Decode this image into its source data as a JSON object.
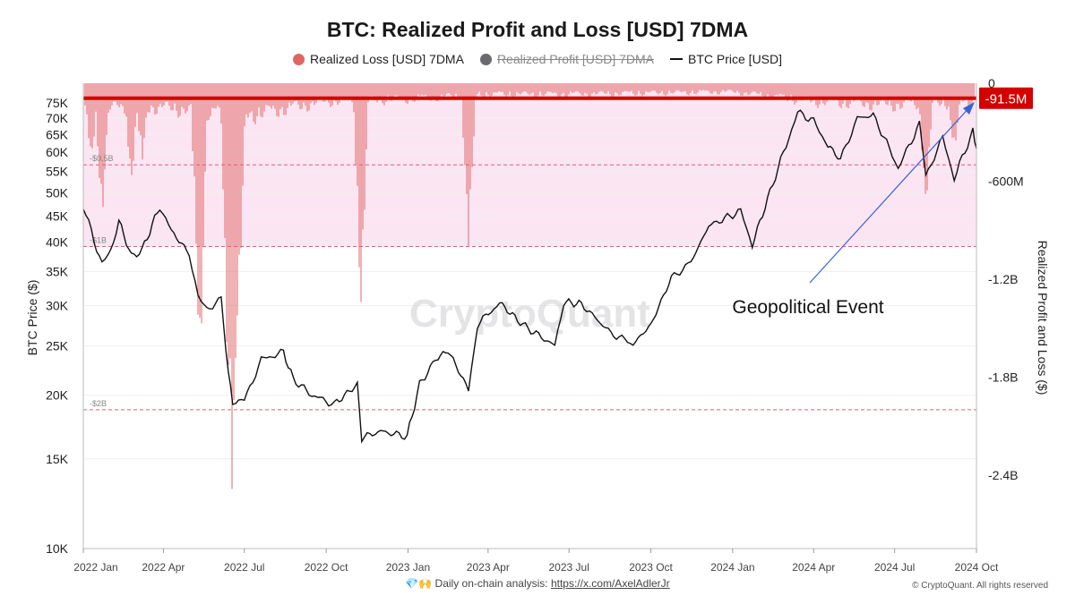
{
  "chart_data": {
    "type": "bar",
    "title": "BTC: Realized Profit and Loss [USD] 7DMA",
    "left_axis_label": "BTC Price ($)",
    "right_axis_label": "Realized Profit and Loss ($)",
    "left_axis_scale": "log",
    "left_axis_ticks": [
      "10K",
      "15K",
      "20K",
      "25K",
      "30K",
      "35K",
      "40K",
      "45K",
      "50K",
      "55K",
      "60K",
      "65K",
      "70K",
      "75K"
    ],
    "left_axis_tick_values": [
      10000,
      15000,
      20000,
      25000,
      30000,
      35000,
      40000,
      45000,
      50000,
      55000,
      60000,
      65000,
      70000,
      75000
    ],
    "right_axis_ticks": [
      "0",
      "-600M",
      "-1.2B",
      "-1.8B",
      "-2.4B"
    ],
    "right_axis_tick_values": [
      0,
      -600000000,
      -1200000000,
      -1800000000,
      -2400000000
    ],
    "ylim_right": [
      -2850000000,
      0
    ],
    "ylim_left": [
      10000,
      82000
    ],
    "x_ticks": [
      "2022 Jan",
      "2022 Apr",
      "2022 Jul",
      "2022 Oct",
      "2023 Jan",
      "2023 Apr",
      "2023 Jul",
      "2023 Oct",
      "2024 Jan",
      "2024 Apr",
      "2024 Jul",
      "2024 Oct"
    ],
    "grid": true,
    "legend_position": "top",
    "legend": [
      {
        "label": "Realized Loss [USD] 7DMA",
        "color": "#e06666",
        "visible": true
      },
      {
        "label": "Realized Profit [USD] 7DMA",
        "color": "#6b6b6f",
        "visible": false
      },
      {
        "label": "BTC Price [USD]",
        "color": "#111111",
        "visible": true
      }
    ],
    "threshold_lines": [
      {
        "label": "-$0.5B",
        "value": -500000000
      },
      {
        "label": "-$1B",
        "value": -1000000000
      },
      {
        "label": "-$2B",
        "value": -2000000000
      }
    ],
    "current_value_label": "-91.5M",
    "current_value": -91500000,
    "annotation": "Geopolitical Event",
    "series": [
      {
        "name": "BTC Price [USD]",
        "points": [
          [
            "2022-01-01",
            47000
          ],
          [
            "2022-01-10",
            42000
          ],
          [
            "2022-01-22",
            36000
          ],
          [
            "2022-02-01",
            38500
          ],
          [
            "2022-02-10",
            44000
          ],
          [
            "2022-02-24",
            37500
          ],
          [
            "2022-03-08",
            38500
          ],
          [
            "2022-03-28",
            47000
          ],
          [
            "2022-04-10",
            42000
          ],
          [
            "2022-04-30",
            38000
          ],
          [
            "2022-05-10",
            31000
          ],
          [
            "2022-05-20",
            29500
          ],
          [
            "2022-06-05",
            31000
          ],
          [
            "2022-06-13",
            22000
          ],
          [
            "2022-06-18",
            19500
          ],
          [
            "2022-07-01",
            19500
          ],
          [
            "2022-07-20",
            23500
          ],
          [
            "2022-08-14",
            24300
          ],
          [
            "2022-08-25",
            21500
          ],
          [
            "2022-09-15",
            20000
          ],
          [
            "2022-10-10",
            19200
          ],
          [
            "2022-11-05",
            21000
          ],
          [
            "2022-11-10",
            16500
          ],
          [
            "2022-12-01",
            17000
          ],
          [
            "2022-12-31",
            16600
          ],
          [
            "2023-01-14",
            21000
          ],
          [
            "2023-02-01",
            23500
          ],
          [
            "2023-02-15",
            24500
          ],
          [
            "2023-03-10",
            20500
          ],
          [
            "2023-03-20",
            27500
          ],
          [
            "2023-04-14",
            30400
          ],
          [
            "2023-05-10",
            27500
          ],
          [
            "2023-06-15",
            25000
          ],
          [
            "2023-06-25",
            30500
          ],
          [
            "2023-07-15",
            30200
          ],
          [
            "2023-08-17",
            26500
          ],
          [
            "2023-09-11",
            25200
          ],
          [
            "2023-10-01",
            27500
          ],
          [
            "2023-10-24",
            34000
          ],
          [
            "2023-11-15",
            36500
          ],
          [
            "2023-12-05",
            43000
          ],
          [
            "2024-01-10",
            46000
          ],
          [
            "2024-01-23",
            39500
          ],
          [
            "2024-02-15",
            52000
          ],
          [
            "2024-03-01",
            62000
          ],
          [
            "2024-03-14",
            72000
          ],
          [
            "2024-04-01",
            69000
          ],
          [
            "2024-04-17",
            62000
          ],
          [
            "2024-05-01",
            58000
          ],
          [
            "2024-05-20",
            70000
          ],
          [
            "2024-06-07",
            71000
          ],
          [
            "2024-06-25",
            61000
          ],
          [
            "2024-07-05",
            56000
          ],
          [
            "2024-07-29",
            68000
          ],
          [
            "2024-08-05",
            54000
          ],
          [
            "2024-08-24",
            64000
          ],
          [
            "2024-09-06",
            53500
          ],
          [
            "2024-09-27",
            66000
          ],
          [
            "2024-10-01",
            61000
          ]
        ]
      },
      {
        "name": "Realized Loss [USD] 7DMA",
        "baseline": [
          [
            "2022-01-01",
            -200000000
          ],
          [
            "2022-04-01",
            -200000000
          ],
          [
            "2022-07-01",
            -270000000
          ],
          [
            "2022-10-01",
            -150000000
          ],
          [
            "2023-01-01",
            -130000000
          ],
          [
            "2023-04-01",
            -90000000
          ],
          [
            "2023-07-01",
            -90000000
          ],
          [
            "2023-10-01",
            -80000000
          ],
          [
            "2024-01-01",
            -70000000
          ],
          [
            "2024-04-01",
            -150000000
          ],
          [
            "2024-07-01",
            -180000000
          ],
          [
            "2024-10-01",
            -150000000
          ]
        ],
        "spikes": [
          [
            "2022-01-10",
            -500000000
          ],
          [
            "2022-01-22",
            -880000000
          ],
          [
            "2022-02-24",
            -650000000
          ],
          [
            "2022-03-08",
            -500000000
          ],
          [
            "2022-05-10",
            -1300000000
          ],
          [
            "2022-05-12",
            -1900000000
          ],
          [
            "2022-06-13",
            -2000000000
          ],
          [
            "2022-06-18",
            -2750000000
          ],
          [
            "2022-06-24",
            -1600000000
          ],
          [
            "2022-11-09",
            -1450000000
          ],
          [
            "2023-03-10",
            -1000000000
          ],
          [
            "2024-08-05",
            -800000000
          ],
          [
            "2024-09-06",
            -450000000
          ]
        ]
      }
    ]
  },
  "footer": {
    "emoji": "💎🙌",
    "text": "Daily on-chain analysis:",
    "link": "https://x.com/AxelAdlerJr",
    "copyright": "© CryptoQuant. All rights reserved"
  },
  "watermark": "CryptoQuant"
}
